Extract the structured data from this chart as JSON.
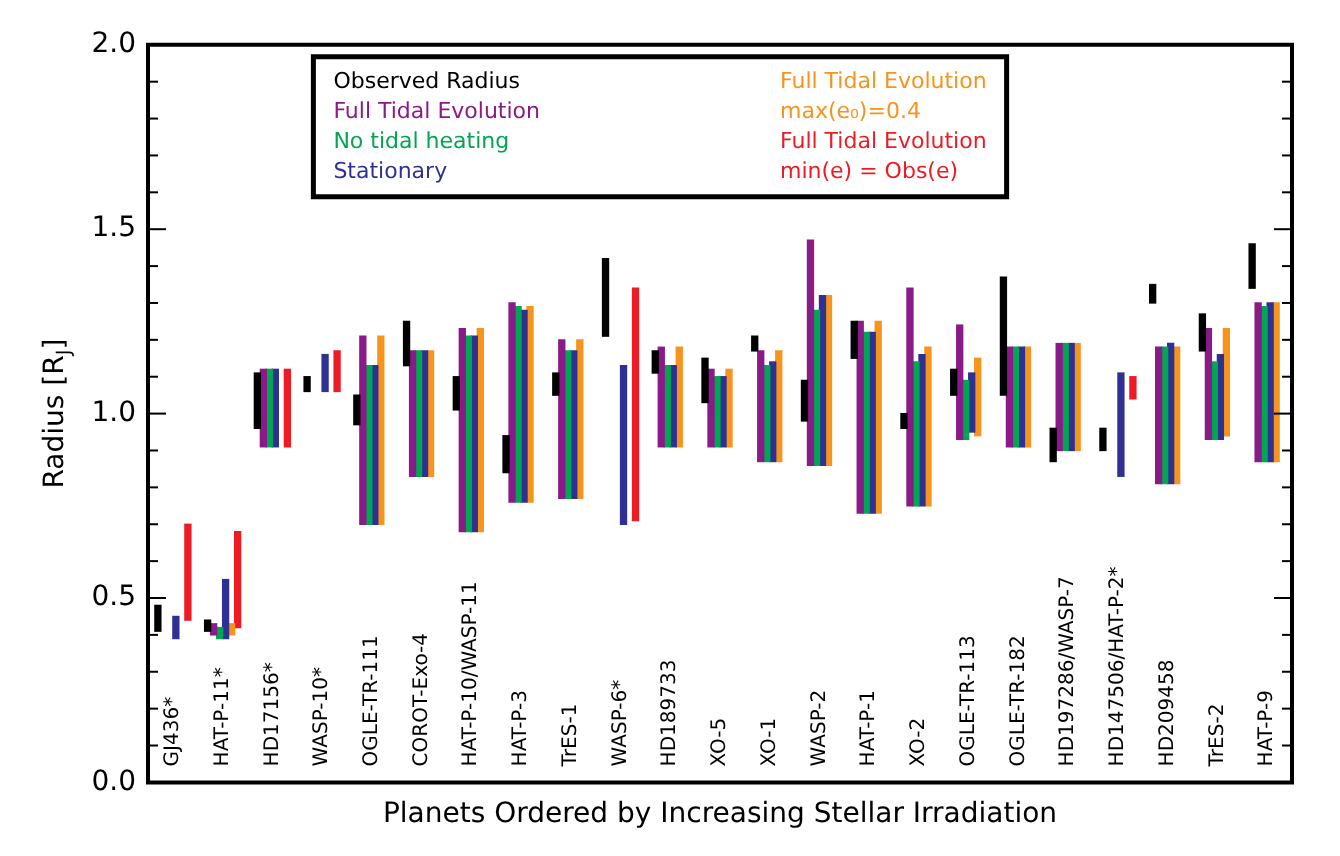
{
  "chart_data": {
    "type": "bar",
    "xlabel": "Planets Ordered by Increasing Stellar Irradiation",
    "ylabel": "Radius [R$_{J}$]",
    "categories": [
      "GJ436*",
      "HAT-P-11*",
      "HD17156*",
      "WASP-10*",
      "OGLE-TR-111",
      "COROT-Exo-4",
      "HAT-P-10/WASP-11",
      "HAT-P-3",
      "TrES-1",
      "WASP-6*",
      "HD189733",
      "XO-5",
      "XO-1",
      "WASP-2",
      "HAT-P-1",
      "XO-2",
      "OGLE-TR-113",
      "OGLE-TR-182",
      "HD197286/WASP-7",
      "HD147506/HAT-P-2*",
      "HD209458",
      "TrES-2",
      "HAT-P-9"
    ],
    "series": [
      {
        "name": "Observed Radius",
        "color": "#000000",
        "base": [
          0.41,
          0.41,
          0.96,
          1.06,
          0.97,
          1.13,
          1.01,
          0.84,
          1.05,
          1.21,
          1.11,
          1.03,
          1.17,
          0.98,
          1.15,
          0.96,
          1.05,
          1.05,
          0.87,
          0.9,
          1.3,
          1.17,
          1.34
        ],
        "values": [
          0.07,
          0.03,
          0.15,
          0.04,
          0.08,
          0.12,
          0.09,
          0.1,
          0.06,
          0.21,
          0.06,
          0.12,
          0.04,
          0.11,
          0.1,
          0.04,
          0.07,
          0.32,
          0.09,
          0.06,
          0.05,
          0.1,
          0.12
        ]
      },
      {
        "name": "Full Tidal Evolution",
        "color": "#8b1a89",
        "base": [
          null,
          0.4,
          0.91,
          null,
          0.7,
          0.83,
          0.68,
          0.76,
          0.77,
          null,
          0.91,
          0.91,
          0.87,
          0.86,
          0.73,
          0.75,
          0.93,
          0.91,
          0.9,
          null,
          0.81,
          0.93,
          0.87
        ],
        "values": [
          null,
          0.03,
          0.21,
          null,
          0.51,
          0.34,
          0.55,
          0.54,
          0.43,
          null,
          0.27,
          0.21,
          0.3,
          0.61,
          0.52,
          0.59,
          0.31,
          0.27,
          0.29,
          null,
          0.37,
          0.3,
          0.43
        ]
      },
      {
        "name": "No tidal heating",
        "color": "#00a651",
        "base": [
          null,
          0.39,
          0.91,
          null,
          0.7,
          0.83,
          0.68,
          0.76,
          0.77,
          null,
          0.91,
          0.91,
          0.87,
          0.86,
          0.73,
          0.75,
          0.93,
          0.91,
          0.9,
          null,
          0.81,
          0.93,
          0.87
        ],
        "values": [
          null,
          0.03,
          0.21,
          null,
          0.43,
          0.34,
          0.53,
          0.53,
          0.4,
          null,
          0.22,
          0.19,
          0.26,
          0.42,
          0.49,
          0.39,
          0.16,
          0.27,
          0.29,
          null,
          0.37,
          0.21,
          0.42
        ]
      },
      {
        "name": "Stationary",
        "color": "#2e3192",
        "base": [
          0.39,
          0.39,
          0.91,
          1.06,
          0.7,
          0.83,
          0.68,
          0.76,
          0.77,
          0.7,
          0.91,
          0.91,
          0.87,
          0.86,
          0.73,
          0.75,
          0.95,
          0.91,
          0.9,
          0.83,
          0.81,
          0.93,
          0.87
        ],
        "values": [
          0.06,
          0.16,
          0.21,
          0.1,
          0.43,
          0.34,
          0.53,
          0.52,
          0.4,
          0.43,
          0.22,
          0.19,
          0.27,
          0.46,
          0.49,
          0.41,
          0.16,
          0.27,
          0.29,
          0.28,
          0.38,
          0.23,
          0.43
        ]
      },
      {
        "name": "Full Tidal Evolution\nmax(e₀)=0.4",
        "color": "#f7941d",
        "base": [
          null,
          0.4,
          null,
          null,
          0.7,
          0.83,
          0.68,
          0.76,
          0.77,
          null,
          0.91,
          0.91,
          0.87,
          0.86,
          0.73,
          0.75,
          0.94,
          0.91,
          0.9,
          null,
          0.81,
          0.94,
          0.87
        ],
        "values": [
          null,
          0.03,
          null,
          null,
          0.51,
          0.34,
          0.55,
          0.53,
          0.43,
          null,
          0.27,
          0.21,
          0.3,
          0.46,
          0.52,
          0.43,
          0.21,
          0.27,
          0.29,
          null,
          0.37,
          0.29,
          0.43
        ]
      },
      {
        "name": "Full Tidal Evolution\nmin(e) = Obs(e)",
        "color": "#ed1c24",
        "base": [
          0.44,
          0.42,
          0.91,
          1.06,
          null,
          null,
          null,
          null,
          null,
          0.71,
          null,
          null,
          null,
          null,
          null,
          null,
          null,
          null,
          null,
          1.04,
          null,
          null,
          null
        ],
        "values": [
          0.26,
          0.26,
          0.21,
          0.11,
          null,
          null,
          null,
          null,
          null,
          0.63,
          null,
          null,
          null,
          null,
          null,
          null,
          null,
          null,
          null,
          0.06,
          null,
          null,
          null
        ]
      }
    ],
    "ylim": [
      0,
      2
    ],
    "yticks": [
      {
        "value": 0,
        "label": "0.0"
      },
      {
        "value": 0.1,
        "label": null
      },
      {
        "value": 0.2,
        "label": null
      },
      {
        "value": 0.3,
        "label": null
      },
      {
        "value": 0.4,
        "label": null
      },
      0.5,
      {
        "value": 0.6,
        "label": null
      },
      {
        "value": 0.7,
        "label": null
      },
      {
        "value": 0.8,
        "label": null
      },
      {
        "value": 0.9,
        "label": null
      },
      {
        "value": 1,
        "label": "1.0"
      },
      {
        "value": 1.1,
        "label": null
      },
      {
        "value": 1.2,
        "label": null
      },
      {
        "value": 1.3,
        "label": null
      },
      {
        "value": 1.4,
        "label": null
      },
      1.5,
      {
        "value": 1.6,
        "label": null
      },
      {
        "value": 1.7,
        "label": null
      },
      {
        "value": 1.8,
        "label": null
      },
      {
        "value": 1.9,
        "label": null
      },
      {
        "value": 2,
        "label": "2.0"
      }
    ],
    "grid": false,
    "legend": "top"
  }
}
